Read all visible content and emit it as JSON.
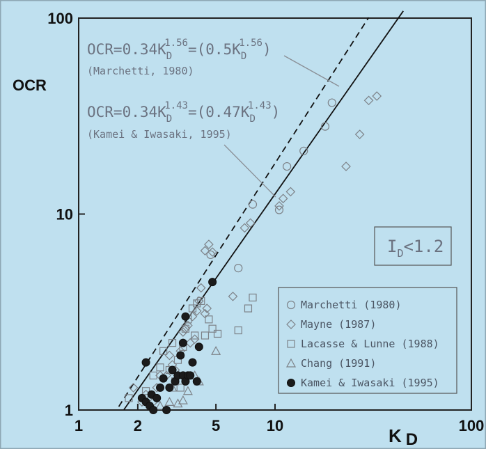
{
  "chart_data": {
    "type": "scatter",
    "xlabel": "K",
    "xlabel_sub": "D",
    "ylabel": "OCR",
    "x_scale": "log",
    "y_scale": "log",
    "xlim": [
      1,
      100
    ],
    "ylim": [
      1,
      100
    ],
    "x_ticks": [
      "1",
      "2",
      "5",
      "10",
      "100"
    ],
    "y_ticks": [
      "1",
      "10",
      "100"
    ],
    "grid": false,
    "legend_position": "bottom-right",
    "condition_label": {
      "main": "I",
      "sub": "D",
      "rest": "<1.2"
    },
    "annotations": [
      {
        "eq_a": "OCR=0.34K",
        "sub_a": "D",
        "sup_a": "1.56",
        "eq_b": "=(0.5K",
        "sub_b": "D",
        "sup_b": "1.56",
        "eq_c": ")",
        "source": "(Marchetti, 1980)"
      },
      {
        "eq_a": "OCR=0.34K",
        "sub_a": "D",
        "sup_a": "1.43",
        "eq_b": "=(0.47K",
        "sub_b": "D",
        "sup_b": "1.43",
        "eq_c": ")",
        "source": "(Kamei & Iwasaki, 1995)"
      }
    ],
    "lines": [
      {
        "label": "Marchetti (1980)",
        "style": "dashed",
        "coef": 0.5,
        "exp": 1.56,
        "x_range": [
          1.6,
          30
        ]
      },
      {
        "label": "Kamei & Iwasaki (1995)",
        "style": "solid",
        "coef": 0.47,
        "exp": 1.43,
        "x_range": [
          1.7,
          45
        ]
      }
    ],
    "series": [
      {
        "name": "Marchetti (1980)",
        "marker": "circle",
        "points": [
          [
            4.7,
            6.2
          ],
          [
            6.5,
            5.3
          ],
          [
            7.7,
            11.2
          ],
          [
            10.5,
            10.5
          ],
          [
            11.5,
            17.5
          ],
          [
            14,
            21
          ],
          [
            18,
            28
          ],
          [
            19.5,
            37
          ]
        ]
      },
      {
        "name": "Mayne (1987)",
        "marker": "diamond",
        "points": [
          [
            1.9,
            1.3
          ],
          [
            2.1,
            1.1
          ],
          [
            2.2,
            1.2
          ],
          [
            2.4,
            1.1
          ],
          [
            2.5,
            1.3
          ],
          [
            2.6,
            1.5
          ],
          [
            2.8,
            1.5
          ],
          [
            2.9,
            1.9
          ],
          [
            3.0,
            1.7
          ],
          [
            3.1,
            1.6
          ],
          [
            3.2,
            1.5
          ],
          [
            3.3,
            2.0
          ],
          [
            3.4,
            2.5
          ],
          [
            3.5,
            2.6
          ],
          [
            3.6,
            2.7
          ],
          [
            3.7,
            2.2
          ],
          [
            3.8,
            3.0
          ],
          [
            3.9,
            2.3
          ],
          [
            4.0,
            3.2
          ],
          [
            4.1,
            3.6
          ],
          [
            4.2,
            4.2
          ],
          [
            4.4,
            3.1
          ],
          [
            4.5,
            3.3
          ],
          [
            4.4,
            6.5
          ],
          [
            4.6,
            7.0
          ],
          [
            4.8,
            6.4
          ],
          [
            6.1,
            3.8
          ],
          [
            7.0,
            8.5
          ],
          [
            7.5,
            9.0
          ],
          [
            10.5,
            11.0
          ],
          [
            11.0,
            12.0
          ],
          [
            12.0,
            13.0
          ],
          [
            23,
            17.5
          ],
          [
            27,
            25.5
          ],
          [
            30,
            38
          ],
          [
            33,
            40
          ]
        ]
      },
      {
        "name": "Lacasse & Lunne (1988)",
        "marker": "square",
        "points": [
          [
            1.8,
            1.15
          ],
          [
            2.2,
            1.25
          ],
          [
            2.4,
            1.5
          ],
          [
            2.6,
            1.65
          ],
          [
            2.7,
            2.0
          ],
          [
            2.9,
            1.6
          ],
          [
            3.0,
            2.2
          ],
          [
            3.1,
            1.4
          ],
          [
            3.2,
            1.8
          ],
          [
            3.3,
            1.3
          ],
          [
            3.4,
            2.1
          ],
          [
            3.5,
            2.6
          ],
          [
            3.6,
            2.9
          ],
          [
            3.8,
            3.3
          ],
          [
            3.9,
            2.4
          ],
          [
            4.0,
            3.5
          ],
          [
            4.2,
            3.6
          ],
          [
            4.4,
            2.4
          ],
          [
            4.6,
            2.9
          ],
          [
            4.8,
            2.6
          ],
          [
            5.1,
            2.45
          ],
          [
            6.5,
            2.55
          ],
          [
            7.3,
            3.3
          ],
          [
            7.7,
            3.75
          ]
        ]
      },
      {
        "name": "Chang (1991)",
        "marker": "triangle",
        "points": [
          [
            2.6,
            1.05
          ],
          [
            2.9,
            1.1
          ],
          [
            3.0,
            1.3
          ],
          [
            3.2,
            1.08
          ],
          [
            3.4,
            1.12
          ],
          [
            3.6,
            1.25
          ],
          [
            3.9,
            1.5
          ],
          [
            4.1,
            1.4
          ],
          [
            5.0,
            2.0
          ]
        ]
      },
      {
        "name": "Kamei & Iwasaki (1995)",
        "marker": "filled-circle",
        "points": [
          [
            2.1,
            1.15
          ],
          [
            2.2,
            1.1
          ],
          [
            2.3,
            1.05
          ],
          [
            2.35,
            1.2
          ],
          [
            2.4,
            1.0
          ],
          [
            2.5,
            1.15
          ],
          [
            2.2,
            1.75
          ],
          [
            2.6,
            1.3
          ],
          [
            2.7,
            1.45
          ],
          [
            2.8,
            1.0
          ],
          [
            2.9,
            1.3
          ],
          [
            3.0,
            1.6
          ],
          [
            3.1,
            1.4
          ],
          [
            3.2,
            1.5
          ],
          [
            3.3,
            1.9
          ],
          [
            3.4,
            1.5
          ],
          [
            3.5,
            1.4
          ],
          [
            3.5,
            3.0
          ],
          [
            3.6,
            1.5
          ],
          [
            3.7,
            1.5
          ],
          [
            3.8,
            1.75
          ],
          [
            4.0,
            1.4
          ],
          [
            4.1,
            2.1
          ],
          [
            4.8,
            4.5
          ],
          [
            3.4,
            2.2
          ]
        ]
      }
    ]
  }
}
